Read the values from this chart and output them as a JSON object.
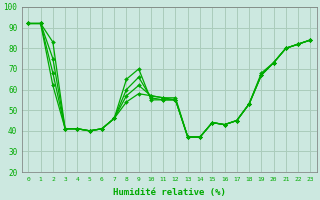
{
  "xlabel": "Humidité relative (%)",
  "background_color": "#cce8e0",
  "grid_color": "#aaccbb",
  "line_color": "#00aa00",
  "xlim": [
    -0.5,
    23.5
  ],
  "ylim": [
    20,
    100
  ],
  "xticks": [
    0,
    1,
    2,
    3,
    4,
    5,
    6,
    7,
    8,
    9,
    10,
    11,
    12,
    13,
    14,
    15,
    16,
    17,
    18,
    19,
    20,
    21,
    22,
    23
  ],
  "yticks": [
    20,
    30,
    40,
    50,
    60,
    70,
    80,
    90,
    100
  ],
  "series": [
    [
      92,
      92,
      83,
      41,
      41,
      40,
      41,
      46,
      65,
      70,
      55,
      55,
      55,
      37,
      37,
      44,
      43,
      45,
      53,
      68,
      73,
      80,
      82,
      84
    ],
    [
      92,
      92,
      75,
      41,
      41,
      40,
      41,
      46,
      60,
      66,
      56,
      55,
      55,
      37,
      37,
      44,
      43,
      45,
      53,
      67,
      73,
      80,
      82,
      84
    ],
    [
      92,
      92,
      68,
      41,
      41,
      40,
      41,
      46,
      57,
      62,
      57,
      56,
      55,
      37,
      37,
      44,
      43,
      45,
      53,
      67,
      73,
      80,
      82,
      84
    ],
    [
      92,
      92,
      62,
      41,
      41,
      40,
      41,
      46,
      54,
      58,
      57,
      56,
      56,
      37,
      37,
      44,
      43,
      45,
      53,
      67,
      73,
      80,
      82,
      84
    ]
  ]
}
